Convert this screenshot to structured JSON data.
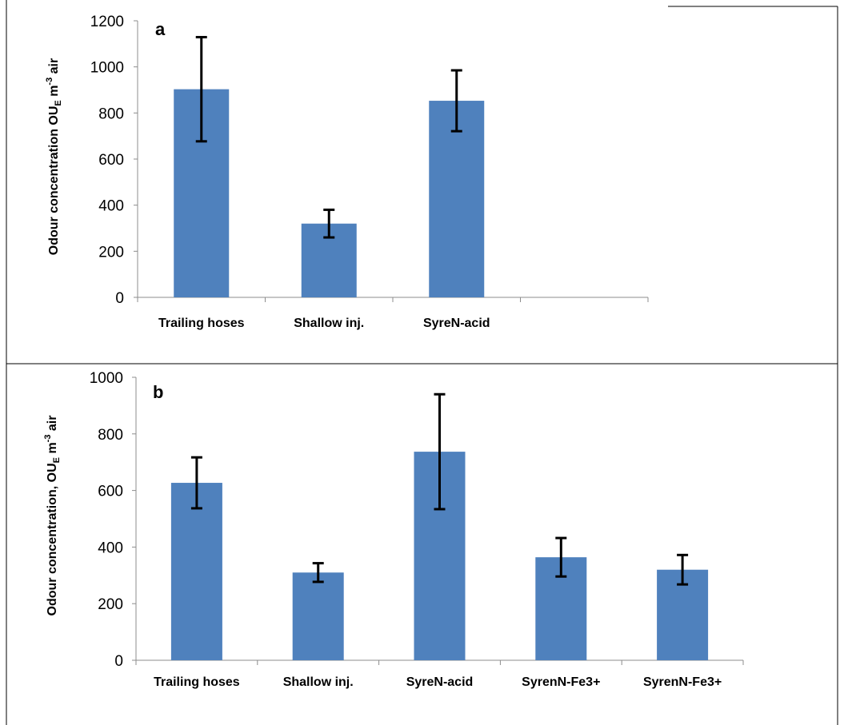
{
  "colors": {
    "bar": "#4F81BD",
    "error_bar": "#000000",
    "frame": "#000000"
  },
  "chart_data": [
    {
      "type": "bar",
      "panel_label": "a",
      "ylabel": "Odour concentration OU_E m^-3 air",
      "ylabel_parts": {
        "main": "Odour concentration OU",
        "sub": "E",
        "mid": " m",
        "sup": "-3",
        "end": " air"
      },
      "ylim": [
        0,
        1200
      ],
      "yticks": [
        0,
        200,
        400,
        600,
        800,
        1000,
        1200
      ],
      "categories": [
        "Trailing hoses",
        "Shallow inj.",
        "SyreN-acid"
      ],
      "values": [
        903,
        320,
        853
      ],
      "errors": [
        226,
        60,
        132
      ],
      "grid": false
    },
    {
      "type": "bar",
      "panel_label": "b",
      "ylabel": "Odour concentration, OU_E m^-3 air",
      "ylabel_parts": {
        "main": "Odour concentration, OU",
        "sub": "E",
        "mid": " m",
        "sup": "-3",
        "end": " air"
      },
      "ylim": [
        0,
        1000
      ],
      "yticks": [
        0,
        200,
        400,
        600,
        800,
        1000
      ],
      "categories": [
        "Trailing hoses",
        "Shallow inj.",
        "SyreN-acid",
        "SyrenN-Fe3+",
        "SyrenN-Fe3+"
      ],
      "values": [
        627,
        310,
        737,
        364,
        320
      ],
      "errors": [
        90,
        33,
        203,
        68,
        52
      ],
      "grid": false
    }
  ]
}
